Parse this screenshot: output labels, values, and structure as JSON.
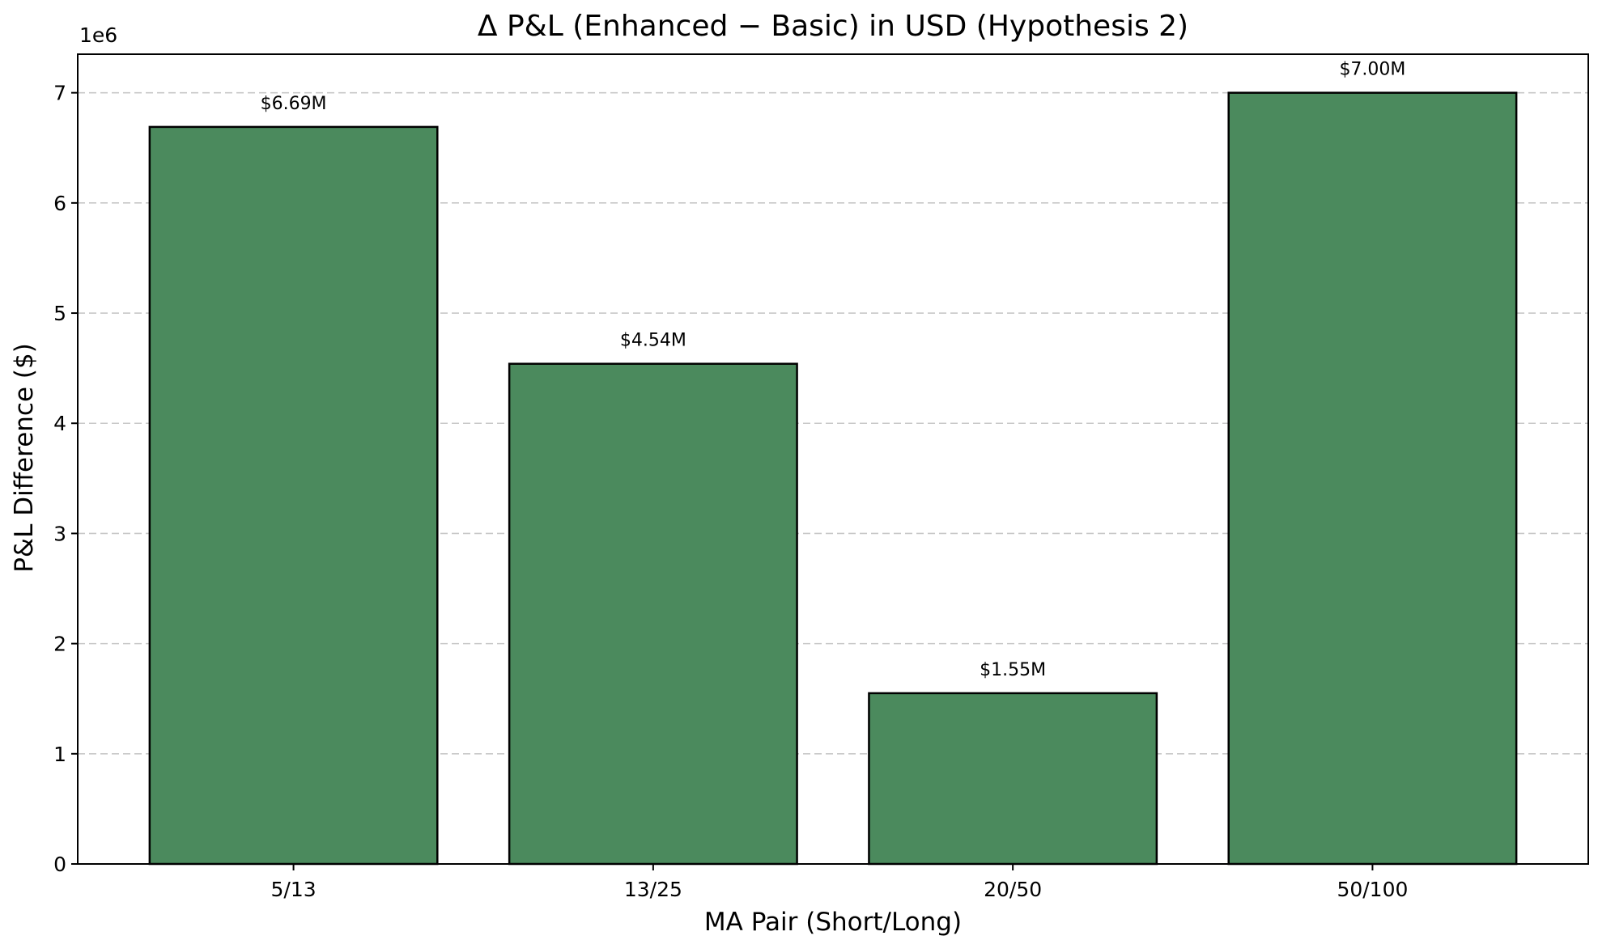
{
  "chart_data": {
    "type": "bar",
    "title": "Δ P&L (Enhanced − Basic) in USD (Hypothesis 2)",
    "xlabel": "MA Pair (Short/Long)",
    "ylabel": "P&L Difference ($)",
    "offset_label": "1e6",
    "categories": [
      "5/13",
      "13/25",
      "20/50",
      "50/100"
    ],
    "values": [
      6690000,
      4540000,
      1550000,
      7000000
    ],
    "data_labels": [
      "$6.69M",
      "$4.54M",
      "$1.55M",
      "$7.00M"
    ],
    "ylim": [
      0,
      7350000
    ],
    "yticks": [
      0,
      1000000,
      2000000,
      3000000,
      4000000,
      5000000,
      6000000,
      7000000
    ],
    "ytick_labels": [
      "0",
      "1",
      "2",
      "3",
      "4",
      "5",
      "6",
      "7"
    ],
    "grid": "y-dashed",
    "colors": {
      "bar": "#4b8a5d",
      "edge": "#000000",
      "grid": "#c8c8c8"
    }
  }
}
